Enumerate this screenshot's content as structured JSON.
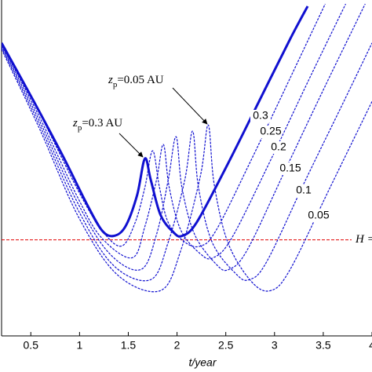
{
  "chart_data": {
    "type": "line",
    "x_label": "t/year",
    "xlim": [
      0.2,
      4.0
    ],
    "xticks": [
      0.5,
      1,
      1.5,
      2,
      2.5,
      3,
      3.5,
      4
    ],
    "ylim": [
      0,
      430
    ],
    "hline": {
      "value": 123,
      "label": "H =",
      "color": "#e00000"
    },
    "annotations": [
      {
        "parts": [
          "z",
          "p",
          "=0.05 AU"
        ]
      },
      {
        "parts": [
          "z",
          "p",
          "=0.3 AU"
        ]
      }
    ],
    "series": [
      {
        "name": "0.3",
        "color": "#1010d0",
        "style": "solid",
        "x": [
          0.2,
          0.51,
          0.83,
          1.07,
          1.23,
          1.35,
          1.47,
          1.59,
          1.67,
          1.73,
          1.83,
          1.96,
          2.05,
          2.2,
          2.52,
          2.84,
          3.16,
          3.34
        ],
        "values": [
          375,
          305,
          230,
          170,
          135,
          128,
          140,
          180,
          227,
          200,
          155,
          133,
          128,
          145,
          220,
          300,
          380,
          422
        ]
      },
      {
        "name": "0.25",
        "color": "#1010d0",
        "style": "dashed",
        "x": [
          0.2,
          0.59,
          0.99,
          1.23,
          1.43,
          1.57,
          1.67,
          1.75,
          1.82,
          1.91,
          2.08,
          2.24,
          2.4,
          2.76,
          3.16,
          3.52
        ],
        "values": [
          375,
          285,
          185,
          135,
          115,
          145,
          190,
          237,
          190,
          145,
          120,
          115,
          135,
          225,
          330,
          425
        ]
      },
      {
        "name": "0.2",
        "color": "#1010d0",
        "style": "dashed",
        "x": [
          0.2,
          0.59,
          0.99,
          1.23,
          1.54,
          1.67,
          1.79,
          1.86,
          1.92,
          2.04,
          2.24,
          2.37,
          2.56,
          2.96,
          3.36,
          3.73
        ],
        "values": [
          373,
          280,
          175,
          125,
          100,
          140,
          200,
          245,
          190,
          135,
          105,
          100,
          125,
          225,
          330,
          425
        ]
      },
      {
        "name": "0.15",
        "color": "#1010d0",
        "style": "dashed",
        "x": [
          0.2,
          0.59,
          0.99,
          1.31,
          1.63,
          1.79,
          1.91,
          1.99,
          2.05,
          2.18,
          2.4,
          2.53,
          2.72,
          3.12,
          3.52,
          3.93
        ],
        "values": [
          371,
          275,
          168,
          105,
          85,
          130,
          200,
          255,
          190,
          130,
          92,
          85,
          110,
          215,
          320,
          425
        ]
      },
      {
        "name": "0.1",
        "color": "#1010d0",
        "style": "dashed",
        "x": [
          0.2,
          0.59,
          0.99,
          1.35,
          1.73,
          1.91,
          2.08,
          2.16,
          2.22,
          2.36,
          2.6,
          2.74,
          2.92,
          3.32,
          3.73,
          4.0
        ],
        "values": [
          369,
          270,
          160,
          90,
          72,
          120,
          200,
          262,
          190,
          120,
          80,
          72,
          95,
          200,
          305,
          375
        ]
      },
      {
        "name": "0.05",
        "color": "#1010d0",
        "style": "dashed",
        "x": [
          0.2,
          0.59,
          0.99,
          1.39,
          1.83,
          2.04,
          2.24,
          2.32,
          2.38,
          2.52,
          2.76,
          2.96,
          3.16,
          3.57,
          4.0
        ],
        "values": [
          367,
          265,
          152,
          78,
          58,
          110,
          205,
          270,
          195,
          120,
          70,
          58,
          85,
          190,
          300
        ]
      }
    ]
  }
}
